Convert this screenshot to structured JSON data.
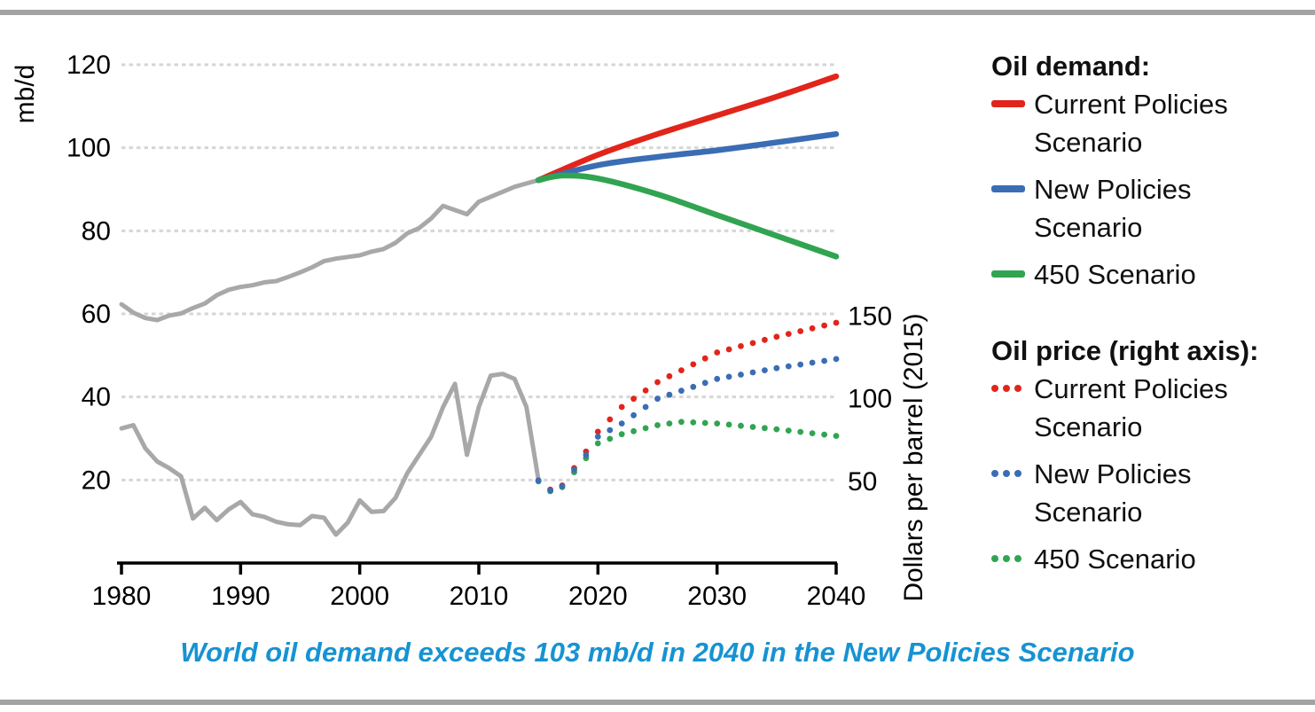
{
  "colors": {
    "red": "#e1251b",
    "blue": "#3a6db4",
    "green": "#31a451",
    "history_gray": "#a8a8a8",
    "gridline": "#d6d6d6",
    "axis_black": "#000000",
    "caption_blue": "#1693d2",
    "border_bar_gray": "#a3a3a3"
  },
  "caption": {
    "text": "World oil demand exceeds 103 mb/d in 2040 in the New Policies Scenario"
  },
  "legend": {
    "demand": {
      "title": "Oil demand:",
      "items": [
        {
          "label": "Current Policies Scenario",
          "color": "red",
          "style": "solid"
        },
        {
          "label": "New Policies Scenario",
          "color": "blue",
          "style": "solid"
        },
        {
          "label": "450 Scenario",
          "color": "green",
          "style": "solid"
        }
      ]
    },
    "price": {
      "title": "Oil price (right axis):",
      "items": [
        {
          "label": "Current Policies Scenario",
          "color": "red",
          "style": "dotted"
        },
        {
          "label": "New Policies Scenario",
          "color": "blue",
          "style": "dotted"
        },
        {
          "label": "450 Scenario",
          "color": "green",
          "style": "dotted"
        }
      ]
    }
  },
  "chart_data": {
    "type": "line",
    "title": "",
    "x_axis": {
      "range": [
        1980,
        2040
      ],
      "label_ticks": [
        1980,
        1990,
        2000,
        2010,
        2020,
        2030,
        2040
      ],
      "grid": false
    },
    "left_axis": {
      "title": "mb/d",
      "ticks": [
        20,
        40,
        60,
        80,
        100,
        120
      ],
      "range": [
        0,
        129
      ],
      "grid": "dotted"
    },
    "right_axis": {
      "title": "Dollars per barrel (2015)",
      "ticks": [
        50,
        100,
        150
      ],
      "range": [
        0,
        157
      ]
    },
    "series": [
      {
        "name": "Oil demand — history",
        "axis": "left",
        "color": "history_gray",
        "style": "solid",
        "smooth": false,
        "x_start": 1980,
        "x_step": 1,
        "values": [
          62.3,
          60.3,
          59.0,
          58.5,
          59.6,
          60.1,
          61.4,
          62.5,
          64.5,
          65.8,
          66.5,
          66.9,
          67.6,
          67.9,
          68.9,
          70.0,
          71.2,
          72.7,
          73.3,
          73.7,
          74.1,
          75.0,
          75.6,
          77.1,
          79.4,
          80.7,
          83.0,
          86.0,
          85.0,
          84.0,
          87.0,
          88.2,
          89.4,
          90.6,
          91.4,
          92.2
        ]
      },
      {
        "name": "Oil demand — Current Policies Scenario",
        "axis": "left",
        "color": "red",
        "style": "solid",
        "smooth": true,
        "points": [
          [
            2015,
            92.2
          ],
          [
            2020,
            98.3
          ],
          [
            2025,
            103.3
          ],
          [
            2030,
            107.8
          ],
          [
            2035,
            112.3
          ],
          [
            2040,
            117.2
          ]
        ]
      },
      {
        "name": "Oil demand — New Policies Scenario",
        "axis": "left",
        "color": "blue",
        "style": "solid",
        "smooth": true,
        "points": [
          [
            2015,
            92.2
          ],
          [
            2020,
            95.8
          ],
          [
            2025,
            97.8
          ],
          [
            2030,
            99.4
          ],
          [
            2035,
            101.3
          ],
          [
            2040,
            103.3
          ]
        ]
      },
      {
        "name": "Oil demand — 450 Scenario",
        "axis": "left",
        "color": "green",
        "style": "solid",
        "smooth": true,
        "points": [
          [
            2015,
            92.2
          ],
          [
            2017,
            93.3
          ],
          [
            2020,
            92.6
          ],
          [
            2025,
            88.8
          ],
          [
            2030,
            83.8
          ],
          [
            2035,
            78.8
          ],
          [
            2040,
            73.8
          ]
        ]
      },
      {
        "name": "Oil price — history",
        "axis": "right",
        "color": "history_gray",
        "style": "solid",
        "smooth": false,
        "x_start": 1980,
        "x_step": 1,
        "values": [
          82,
          84,
          70,
          62,
          58,
          53,
          27.5,
          34,
          26.5,
          33,
          37.5,
          30,
          28.5,
          25.5,
          24,
          23.5,
          29,
          28,
          17.7,
          25,
          38.5,
          31.5,
          32,
          40,
          55,
          66,
          77,
          95,
          109,
          66,
          95,
          114,
          115,
          112,
          95,
          51
        ]
      },
      {
        "name": "Oil price — Current Policies Scenario",
        "axis": "right",
        "color": "red",
        "style": "dotted",
        "points": [
          [
            2015,
            50.5
          ],
          [
            2016,
            45
          ],
          [
            2017,
            47.5
          ],
          [
            2018,
            58
          ],
          [
            2019,
            68
          ],
          [
            2020,
            80
          ],
          [
            2022,
            95
          ],
          [
            2025,
            110
          ],
          [
            2030,
            128
          ],
          [
            2035,
            137.5
          ],
          [
            2040,
            146
          ]
        ]
      },
      {
        "name": "Oil price — 450 Scenario",
        "axis": "right",
        "color": "green",
        "style": "dotted",
        "points": [
          [
            2015,
            50
          ],
          [
            2016,
            44
          ],
          [
            2017,
            46.5
          ],
          [
            2018,
            55.5
          ],
          [
            2019,
            64
          ],
          [
            2020,
            73
          ],
          [
            2022,
            78.5
          ],
          [
            2025,
            84
          ],
          [
            2027,
            86
          ],
          [
            2030,
            85
          ],
          [
            2035,
            81.5
          ],
          [
            2040,
            77.5
          ]
        ]
      },
      {
        "name": "Oil price — New Policies Scenario",
        "axis": "right",
        "color": "blue",
        "style": "dotted",
        "points": [
          [
            2015,
            50.5
          ],
          [
            2016,
            44.5
          ],
          [
            2017,
            47
          ],
          [
            2018,
            57
          ],
          [
            2019,
            66
          ],
          [
            2020,
            77
          ],
          [
            2022,
            85
          ],
          [
            2025,
            100
          ],
          [
            2030,
            112
          ],
          [
            2035,
            118.5
          ],
          [
            2040,
            124
          ]
        ]
      }
    ]
  }
}
